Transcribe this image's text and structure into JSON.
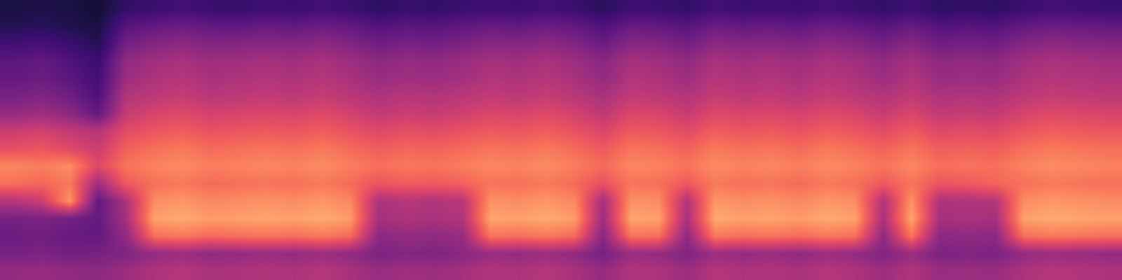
{
  "chart_data": {
    "type": "heatmap",
    "color": "magma",
    "tick_labels": false,
    "zlim": [
      0,
      1
    ],
    "cells": [
      [
        0.12,
        0.13,
        0.12,
        0.1,
        0.18,
        0.2,
        0.22,
        0.2,
        0.19,
        0.21,
        0.2,
        0.22,
        0.2,
        0.17,
        0.19,
        0.18,
        0.2,
        0.21,
        0.2,
        0.22,
        0.2,
        0.16,
        0.21,
        0.2,
        0.18,
        0.22,
        0.2,
        0.21,
        0.2,
        0.22,
        0.2,
        0.18,
        0.21,
        0.17,
        0.18,
        0.17,
        0.2,
        0.22,
        0.21,
        0.2
      ],
      [
        0.15,
        0.16,
        0.14,
        0.12,
        0.27,
        0.3,
        0.32,
        0.3,
        0.29,
        0.31,
        0.3,
        0.32,
        0.3,
        0.26,
        0.28,
        0.27,
        0.29,
        0.31,
        0.3,
        0.32,
        0.3,
        0.25,
        0.31,
        0.3,
        0.27,
        0.32,
        0.3,
        0.31,
        0.29,
        0.32,
        0.3,
        0.27,
        0.31,
        0.26,
        0.27,
        0.26,
        0.3,
        0.32,
        0.31,
        0.3
      ],
      [
        0.22,
        0.23,
        0.2,
        0.15,
        0.34,
        0.38,
        0.4,
        0.37,
        0.38,
        0.39,
        0.38,
        0.4,
        0.37,
        0.33,
        0.35,
        0.34,
        0.36,
        0.39,
        0.38,
        0.4,
        0.37,
        0.32,
        0.39,
        0.38,
        0.34,
        0.4,
        0.38,
        0.39,
        0.37,
        0.4,
        0.38,
        0.34,
        0.39,
        0.33,
        0.34,
        0.33,
        0.38,
        0.4,
        0.39,
        0.38
      ],
      [
        0.28,
        0.3,
        0.26,
        0.2,
        0.41,
        0.45,
        0.47,
        0.44,
        0.45,
        0.46,
        0.45,
        0.47,
        0.44,
        0.4,
        0.42,
        0.41,
        0.43,
        0.46,
        0.45,
        0.47,
        0.44,
        0.39,
        0.46,
        0.45,
        0.41,
        0.47,
        0.45,
        0.46,
        0.44,
        0.47,
        0.45,
        0.41,
        0.46,
        0.4,
        0.41,
        0.4,
        0.45,
        0.47,
        0.46,
        0.45
      ],
      [
        0.3,
        0.32,
        0.28,
        0.22,
        0.44,
        0.48,
        0.5,
        0.47,
        0.48,
        0.49,
        0.48,
        0.5,
        0.47,
        0.43,
        0.45,
        0.44,
        0.46,
        0.49,
        0.48,
        0.5,
        0.47,
        0.42,
        0.49,
        0.48,
        0.44,
        0.5,
        0.48,
        0.49,
        0.47,
        0.5,
        0.48,
        0.44,
        0.49,
        0.43,
        0.44,
        0.43,
        0.48,
        0.5,
        0.49,
        0.48
      ],
      [
        0.35,
        0.37,
        0.33,
        0.25,
        0.49,
        0.52,
        0.54,
        0.51,
        0.52,
        0.53,
        0.52,
        0.54,
        0.51,
        0.48,
        0.5,
        0.49,
        0.51,
        0.53,
        0.52,
        0.54,
        0.51,
        0.47,
        0.53,
        0.52,
        0.49,
        0.54,
        0.52,
        0.53,
        0.51,
        0.54,
        0.52,
        0.49,
        0.53,
        0.48,
        0.49,
        0.48,
        0.52,
        0.54,
        0.53,
        0.52
      ],
      [
        0.42,
        0.44,
        0.4,
        0.3,
        0.54,
        0.58,
        0.6,
        0.57,
        0.58,
        0.59,
        0.58,
        0.6,
        0.57,
        0.53,
        0.55,
        0.54,
        0.56,
        0.59,
        0.58,
        0.6,
        0.57,
        0.52,
        0.59,
        0.58,
        0.54,
        0.6,
        0.58,
        0.59,
        0.57,
        0.6,
        0.58,
        0.54,
        0.59,
        0.53,
        0.54,
        0.53,
        0.58,
        0.6,
        0.59,
        0.58
      ],
      [
        0.55,
        0.57,
        0.53,
        0.5,
        0.61,
        0.64,
        0.66,
        0.63,
        0.64,
        0.65,
        0.64,
        0.66,
        0.63,
        0.6,
        0.62,
        0.61,
        0.63,
        0.65,
        0.64,
        0.66,
        0.63,
        0.59,
        0.65,
        0.64,
        0.61,
        0.66,
        0.64,
        0.65,
        0.63,
        0.66,
        0.64,
        0.61,
        0.65,
        0.6,
        0.61,
        0.6,
        0.64,
        0.66,
        0.65,
        0.64
      ],
      [
        0.62,
        0.64,
        0.6,
        0.55,
        0.67,
        0.7,
        0.72,
        0.69,
        0.7,
        0.71,
        0.7,
        0.72,
        0.69,
        0.66,
        0.68,
        0.67,
        0.69,
        0.71,
        0.7,
        0.72,
        0.69,
        0.65,
        0.71,
        0.7,
        0.67,
        0.72,
        0.7,
        0.71,
        0.69,
        0.72,
        0.7,
        0.67,
        0.71,
        0.66,
        0.67,
        0.66,
        0.7,
        0.72,
        0.71,
        0.7
      ],
      [
        0.75,
        0.73,
        0.76,
        0.6,
        0.71,
        0.74,
        0.76,
        0.73,
        0.74,
        0.75,
        0.74,
        0.76,
        0.73,
        0.7,
        0.72,
        0.71,
        0.73,
        0.75,
        0.74,
        0.76,
        0.73,
        0.69,
        0.75,
        0.74,
        0.71,
        0.76,
        0.74,
        0.75,
        0.73,
        0.76,
        0.74,
        0.71,
        0.75,
        0.7,
        0.71,
        0.7,
        0.74,
        0.76,
        0.75,
        0.74
      ],
      [
        0.7,
        0.68,
        0.72,
        0.45,
        0.65,
        0.7,
        0.72,
        0.69,
        0.7,
        0.71,
        0.7,
        0.72,
        0.69,
        0.64,
        0.66,
        0.65,
        0.67,
        0.71,
        0.7,
        0.72,
        0.69,
        0.63,
        0.71,
        0.7,
        0.65,
        0.72,
        0.7,
        0.71,
        0.69,
        0.72,
        0.7,
        0.65,
        0.71,
        0.64,
        0.65,
        0.68,
        0.7,
        0.72,
        0.71,
        0.7
      ],
      [
        0.5,
        0.55,
        0.78,
        0.3,
        0.48,
        0.76,
        0.78,
        0.75,
        0.76,
        0.77,
        0.76,
        0.78,
        0.75,
        0.48,
        0.5,
        0.49,
        0.51,
        0.77,
        0.76,
        0.78,
        0.75,
        0.46,
        0.77,
        0.76,
        0.49,
        0.78,
        0.76,
        0.77,
        0.75,
        0.78,
        0.76,
        0.49,
        0.77,
        0.48,
        0.49,
        0.5,
        0.76,
        0.78,
        0.77,
        0.76
      ],
      [
        0.35,
        0.36,
        0.34,
        0.3,
        0.46,
        0.8,
        0.82,
        0.79,
        0.8,
        0.81,
        0.8,
        0.82,
        0.79,
        0.46,
        0.48,
        0.47,
        0.49,
        0.81,
        0.8,
        0.82,
        0.79,
        0.44,
        0.81,
        0.8,
        0.47,
        0.82,
        0.8,
        0.81,
        0.79,
        0.82,
        0.8,
        0.47,
        0.81,
        0.46,
        0.47,
        0.46,
        0.8,
        0.82,
        0.81,
        0.8
      ],
      [
        0.32,
        0.33,
        0.31,
        0.3,
        0.41,
        0.7,
        0.72,
        0.69,
        0.7,
        0.71,
        0.7,
        0.72,
        0.69,
        0.4,
        0.42,
        0.41,
        0.43,
        0.71,
        0.7,
        0.72,
        0.69,
        0.39,
        0.71,
        0.7,
        0.41,
        0.72,
        0.7,
        0.71,
        0.69,
        0.72,
        0.7,
        0.41,
        0.71,
        0.4,
        0.41,
        0.4,
        0.7,
        0.72,
        0.71,
        0.7
      ],
      [
        0.35,
        0.36,
        0.34,
        0.35,
        0.37,
        0.42,
        0.44,
        0.41,
        0.42,
        0.43,
        0.42,
        0.44,
        0.41,
        0.36,
        0.38,
        0.37,
        0.39,
        0.43,
        0.42,
        0.44,
        0.41,
        0.35,
        0.43,
        0.42,
        0.37,
        0.44,
        0.42,
        0.43,
        0.41,
        0.44,
        0.42,
        0.37,
        0.43,
        0.36,
        0.37,
        0.36,
        0.42,
        0.44,
        0.43,
        0.42
      ],
      [
        0.42,
        0.43,
        0.41,
        0.4,
        0.44,
        0.48,
        0.5,
        0.47,
        0.48,
        0.49,
        0.48,
        0.5,
        0.47,
        0.43,
        0.45,
        0.44,
        0.46,
        0.49,
        0.48,
        0.5,
        0.47,
        0.42,
        0.49,
        0.48,
        0.44,
        0.5,
        0.48,
        0.49,
        0.47,
        0.5,
        0.48,
        0.44,
        0.49,
        0.43,
        0.44,
        0.43,
        0.48,
        0.5,
        0.49,
        0.48
      ]
    ]
  }
}
